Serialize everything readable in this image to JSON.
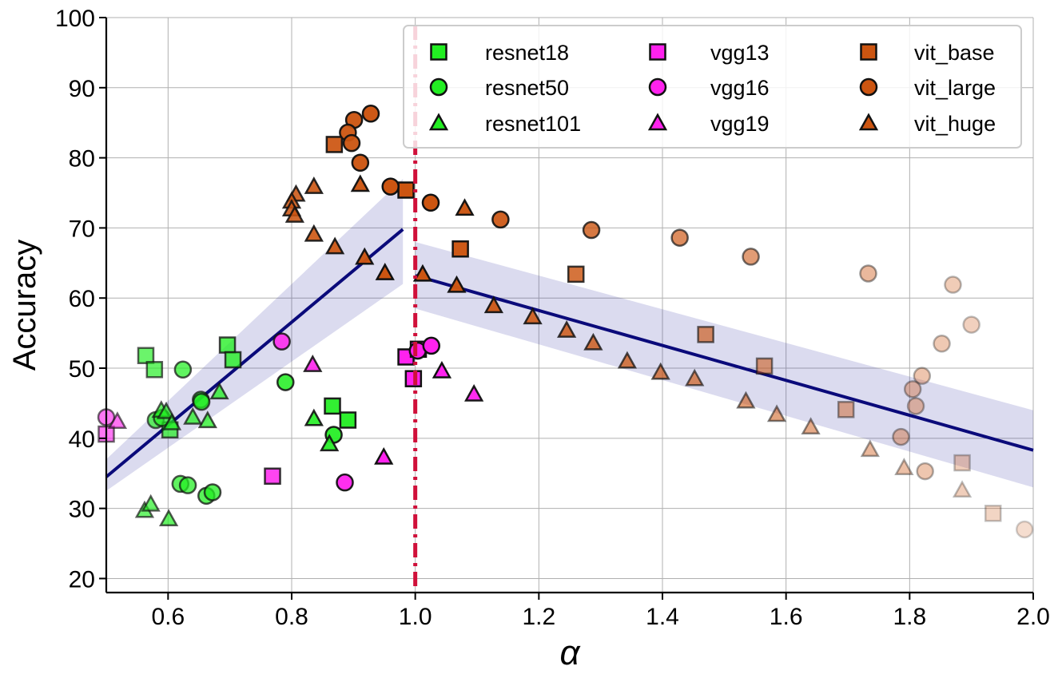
{
  "chart_data": {
    "type": "scatter",
    "title": "",
    "xlabel": "α",
    "ylabel": "Accuracy",
    "xlim": [
      0.5,
      2.0
    ],
    "ylim": [
      18,
      100
    ],
    "xticks": [
      0.6,
      0.8,
      1.0,
      1.2,
      1.4,
      1.6,
      1.8,
      2.0
    ],
    "xtick_labels": [
      "0.6",
      "0.8",
      "1.0",
      "1.2",
      "1.4",
      "1.6",
      "1.8",
      "2.0"
    ],
    "yticks": [
      20,
      30,
      40,
      50,
      60,
      70,
      80,
      90,
      100
    ],
    "ytick_labels": [
      "20",
      "30",
      "40",
      "50",
      "60",
      "70",
      "80",
      "90",
      "100"
    ],
    "grid": true,
    "legend_position": "top-right",
    "vline": {
      "x": 1.0,
      "color": "#d0103a",
      "style": "dash-dot"
    },
    "fits": [
      {
        "name": "fit-left",
        "x": [
          0.5,
          0.98
        ],
        "y": [
          34.5,
          69.8
        ],
        "band_lower": [
          32.5,
          62.0
        ],
        "band_upper": [
          37.0,
          77.0
        ]
      },
      {
        "name": "fit-right",
        "x": [
          1.0,
          2.0
        ],
        "y": [
          63.2,
          38.3
        ],
        "band_lower": [
          58.5,
          33.0
        ],
        "band_upper": [
          68.0,
          44.0
        ]
      }
    ],
    "series": [
      {
        "name": "resnet18",
        "marker": "square",
        "color": "#22ee22",
        "points": [
          [
            0.564,
            51.8
          ],
          [
            0.578,
            49.8
          ],
          [
            0.696,
            53.3
          ],
          [
            0.705,
            51.2
          ],
          [
            0.866,
            44.6
          ],
          [
            0.891,
            42.6
          ],
          [
            0.603,
            41.2
          ]
        ]
      },
      {
        "name": "resnet50",
        "marker": "circle",
        "color": "#22ee22",
        "points": [
          [
            0.624,
            49.8
          ],
          [
            0.653,
            45.5
          ],
          [
            0.654,
            45.2
          ],
          [
            0.79,
            48.0
          ],
          [
            0.868,
            40.5
          ],
          [
            0.58,
            42.6
          ],
          [
            0.59,
            42.9
          ],
          [
            0.62,
            33.5
          ],
          [
            0.632,
            33.3
          ],
          [
            0.662,
            31.8
          ],
          [
            0.672,
            32.3
          ]
        ]
      },
      {
        "name": "resnet101",
        "marker": "triangle",
        "color": "#22ee22",
        "points": [
          [
            0.683,
            46.6
          ],
          [
            0.664,
            42.5
          ],
          [
            0.589,
            44.0
          ],
          [
            0.597,
            43.8
          ],
          [
            0.606,
            42.2
          ],
          [
            0.64,
            43.0
          ],
          [
            0.836,
            42.8
          ],
          [
            0.861,
            39.2
          ],
          [
            0.562,
            29.7
          ],
          [
            0.572,
            30.6
          ],
          [
            0.601,
            28.5
          ]
        ]
      },
      {
        "name": "vgg13",
        "marker": "square",
        "color": "#ff22ee",
        "points": [
          [
            0.5,
            40.6
          ],
          [
            0.769,
            34.6
          ],
          [
            0.985,
            51.6
          ],
          [
            0.997,
            48.5
          ],
          [
            1.005,
            52.7
          ]
        ]
      },
      {
        "name": "vgg16",
        "marker": "circle",
        "color": "#ff22ee",
        "points": [
          [
            0.5,
            43.0
          ],
          [
            0.784,
            53.8
          ],
          [
            0.886,
            33.7
          ],
          [
            1.004,
            52.5
          ],
          [
            1.026,
            53.2
          ]
        ]
      },
      {
        "name": "vgg19",
        "marker": "triangle",
        "color": "#ff22ee",
        "points": [
          [
            0.518,
            42.4
          ],
          [
            0.834,
            50.5
          ],
          [
            0.949,
            37.3
          ],
          [
            1.043,
            49.6
          ],
          [
            1.095,
            46.3
          ]
        ]
      },
      {
        "name": "vit_base",
        "marker": "square",
        "color": "#cc5511",
        "points": [
          [
            0.869,
            81.9
          ],
          [
            0.985,
            75.4
          ],
          [
            1.073,
            67.0
          ],
          [
            1.26,
            63.4
          ],
          [
            1.47,
            54.8
          ],
          [
            1.565,
            50.3
          ],
          [
            1.697,
            44.1
          ],
          [
            1.885,
            36.5
          ],
          [
            1.935,
            29.3
          ]
        ]
      },
      {
        "name": "vit_large",
        "marker": "circle",
        "color": "#cc5511",
        "points": [
          [
            0.928,
            86.3
          ],
          [
            0.901,
            85.4
          ],
          [
            0.891,
            83.6
          ],
          [
            0.897,
            82.1
          ],
          [
            0.911,
            79.3
          ],
          [
            0.96,
            75.9
          ],
          [
            1.025,
            73.6
          ],
          [
            1.138,
            71.2
          ],
          [
            1.285,
            69.7
          ],
          [
            1.428,
            68.6
          ],
          [
            1.543,
            65.9
          ],
          [
            1.733,
            63.5
          ],
          [
            1.87,
            61.9
          ],
          [
            1.9,
            56.2
          ],
          [
            1.852,
            53.5
          ],
          [
            1.82,
            48.9
          ],
          [
            1.805,
            47.0
          ],
          [
            1.81,
            44.6
          ],
          [
            1.786,
            40.2
          ],
          [
            1.825,
            35.3
          ],
          [
            1.986,
            27.0
          ]
        ]
      },
      {
        "name": "vit_huge",
        "marker": "triangle",
        "color": "#cc5511",
        "points": [
          [
            0.807,
            74.8
          ],
          [
            0.8,
            73.8
          ],
          [
            0.8,
            72.7
          ],
          [
            0.805,
            71.8
          ],
          [
            0.836,
            75.9
          ],
          [
            0.911,
            76.2
          ],
          [
            0.836,
            69.1
          ],
          [
            0.87,
            67.3
          ],
          [
            0.918,
            65.8
          ],
          [
            0.951,
            63.6
          ],
          [
            1.012,
            63.4
          ],
          [
            1.08,
            72.8
          ],
          [
            1.067,
            61.8
          ],
          [
            1.127,
            58.9
          ],
          [
            1.19,
            57.3
          ],
          [
            1.245,
            55.4
          ],
          [
            1.288,
            53.6
          ],
          [
            1.343,
            51.0
          ],
          [
            1.397,
            49.4
          ],
          [
            1.452,
            48.5
          ],
          [
            1.535,
            45.3
          ],
          [
            1.585,
            43.4
          ],
          [
            1.64,
            41.6
          ],
          [
            1.736,
            38.4
          ],
          [
            1.791,
            35.8
          ],
          [
            1.885,
            32.6
          ]
        ]
      }
    ]
  }
}
